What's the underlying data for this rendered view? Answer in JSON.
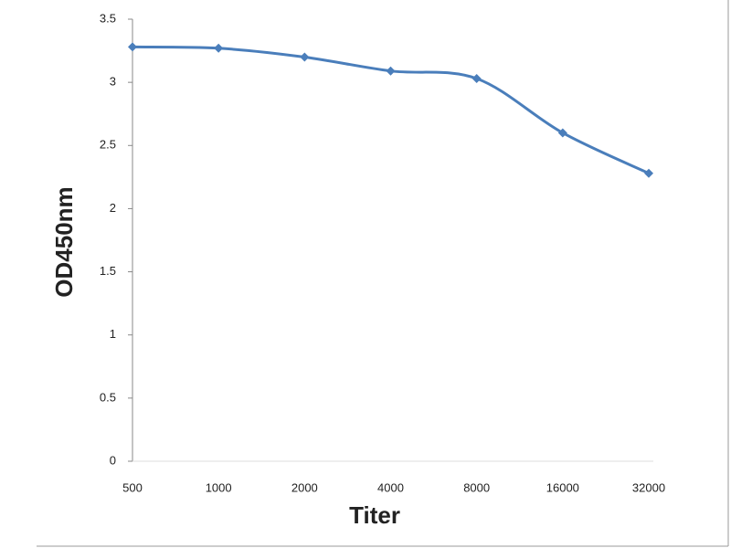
{
  "chart_data": {
    "type": "line",
    "x_label": "Titer",
    "y_label": "OD450nm",
    "categories": [
      "500",
      "1000",
      "2000",
      "4000",
      "8000",
      "16000",
      "32000"
    ],
    "series": [
      {
        "name": "OD450nm",
        "color": "#4a7ebb",
        "values": [
          3.28,
          3.27,
          3.2,
          3.09,
          3.03,
          2.6,
          2.28
        ]
      }
    ],
    "ylim": [
      0,
      3.5
    ],
    "yticks": [
      0,
      0.5,
      1,
      1.5,
      2,
      2.5,
      3,
      3.5
    ],
    "grid": false
  }
}
